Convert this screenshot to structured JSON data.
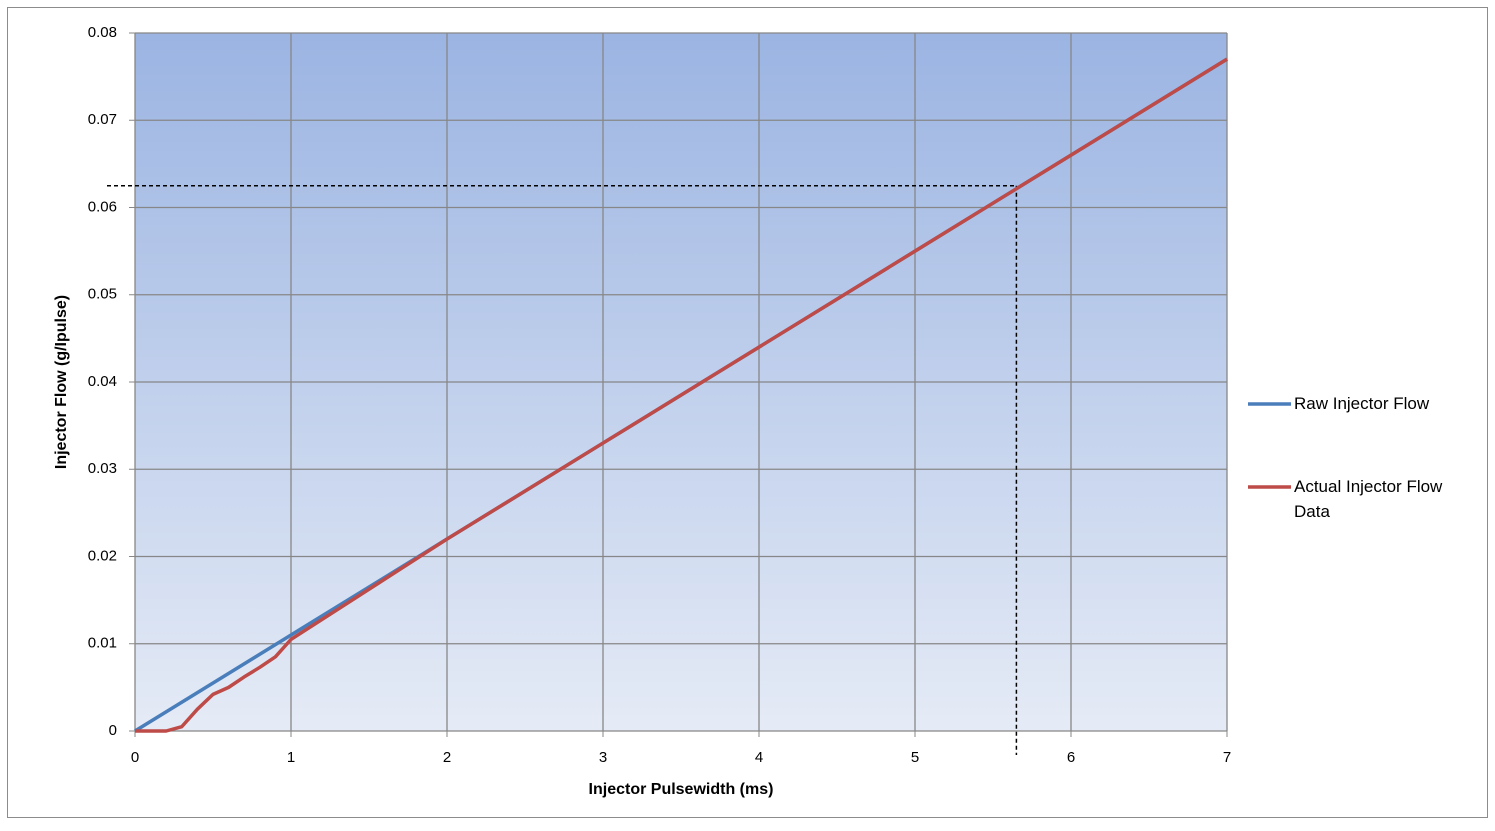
{
  "chart_data": {
    "type": "line",
    "x_label": "Injector Pulsewidth (ms)",
    "y_label": "Injector Flow  (g/Ipulse)",
    "series": [
      {
        "name": "Raw Injector Flow",
        "color": "#4a7ebb",
        "x": [
          0,
          1,
          2,
          3,
          4,
          5,
          6,
          7
        ],
        "values": [
          0,
          0.011,
          0.022,
          0.033,
          0.044,
          0.055,
          0.066,
          0.077
        ]
      },
      {
        "name": "Actual Injector Flow Data",
        "color": "#be4b48",
        "x": [
          0,
          0.1,
          0.2,
          0.3,
          0.4,
          0.5,
          0.6,
          0.7,
          0.8,
          0.9,
          1,
          2,
          3,
          4,
          5,
          6,
          7
        ],
        "values": [
          0,
          0,
          0,
          0.0005,
          0.0025,
          0.0042,
          0.005,
          0.0062,
          0.0073,
          0.0085,
          0.0105,
          0.022,
          0.033,
          0.044,
          0.055,
          0.066,
          0.077
        ]
      }
    ],
    "reference_lines": [
      {
        "axis": "x",
        "value": 5.65
      },
      {
        "axis": "y",
        "value": 0.0625
      }
    ],
    "xlim": [
      0,
      7
    ],
    "xticks": [
      0,
      1,
      2,
      3,
      4,
      5,
      6,
      7
    ],
    "ylim": [
      0,
      0.08
    ],
    "yticks": [
      0,
      0.01,
      0.02,
      0.03,
      0.04,
      0.05,
      0.06,
      0.07,
      0.08
    ],
    "grid": true,
    "legend": "right"
  }
}
